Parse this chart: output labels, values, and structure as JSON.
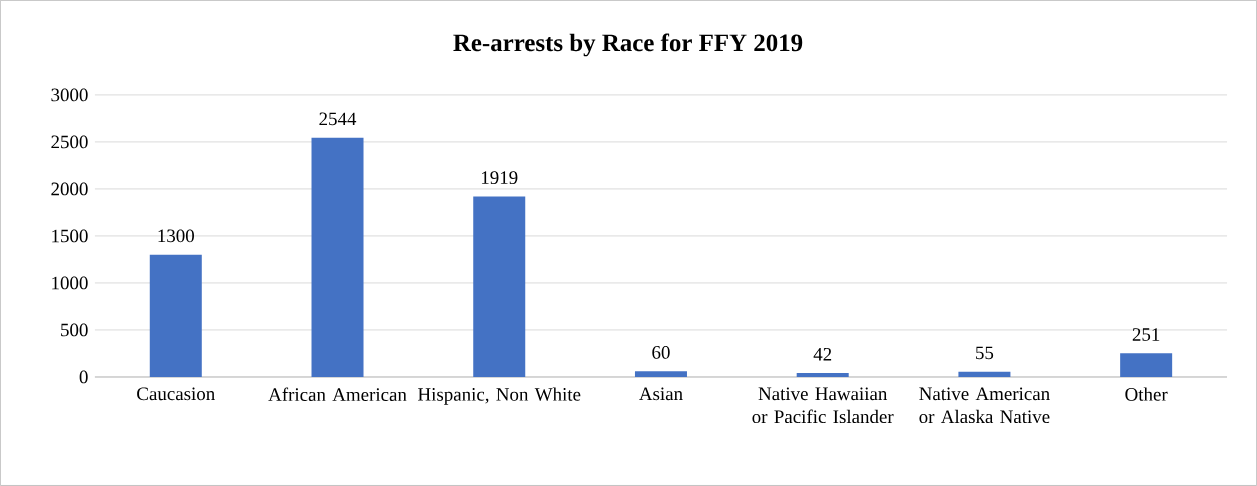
{
  "chart_data": {
    "type": "bar",
    "title": "Re-arrests by Race for FFY 2019",
    "categories": [
      "Caucasion",
      "African American",
      "Hispanic, Non White",
      "Asian",
      "Native Hawaiian or Pacific Islander",
      "Native American or Alaska Native",
      "Other"
    ],
    "values": [
      1300,
      2544,
      1919,
      60,
      42,
      55,
      251
    ],
    "color": "#4472c4",
    "ylim": [
      0,
      3000
    ],
    "yticks": [
      0,
      500,
      1000,
      1500,
      2000,
      2500,
      3000
    ],
    "grid": "y",
    "data_labels": true
  }
}
